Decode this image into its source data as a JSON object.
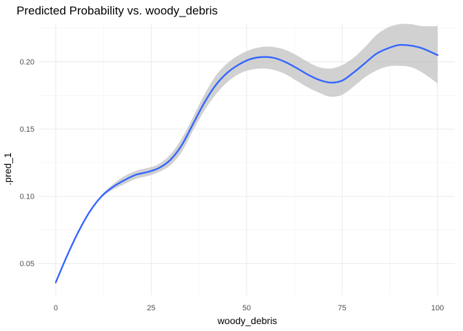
{
  "chart_data": {
    "type": "line",
    "title": "Predicted Probability vs. woody_debris",
    "xlabel": "woody_debris",
    "ylabel": ".pred_1",
    "xlim": [
      -4.5,
      104.5
    ],
    "ylim": [
      0.0265,
      0.2285
    ],
    "x_ticks": [
      0,
      25,
      50,
      75,
      100
    ],
    "x_tick_labels": [
      "0",
      "25",
      "50",
      "75",
      "100"
    ],
    "y_ticks": [
      0.05,
      0.1,
      0.15,
      0.2
    ],
    "y_tick_labels": [
      "0.05",
      "0.10",
      "0.15",
      "0.20"
    ],
    "grid": true,
    "legend": "none",
    "colors": {
      "line": "#3366ff",
      "band": "#bdbdbd"
    },
    "series": [
      {
        "x": [
          0,
          3,
          6,
          9,
          12,
          15,
          18,
          21,
          24,
          27,
          30,
          33,
          36,
          39,
          42,
          45,
          48,
          51,
          54,
          57,
          60,
          63,
          66,
          69,
          72,
          75,
          78,
          81,
          84,
          87,
          90,
          93,
          96,
          100
        ],
        "y": [
          0.036,
          0.056,
          0.074,
          0.089,
          0.1,
          0.107,
          0.112,
          0.116,
          0.118,
          0.121,
          0.127,
          0.138,
          0.154,
          0.17,
          0.183,
          0.192,
          0.198,
          0.202,
          0.2035,
          0.203,
          0.2,
          0.1955,
          0.1905,
          0.1865,
          0.1845,
          0.186,
          0.192,
          0.199,
          0.206,
          0.21,
          0.2125,
          0.212,
          0.21,
          0.205
        ],
        "lower": [
          0.0355,
          0.0555,
          0.0735,
          0.0885,
          0.099,
          0.105,
          0.109,
          0.113,
          0.115,
          0.118,
          0.123,
          0.133,
          0.149,
          0.164,
          0.176,
          0.185,
          0.191,
          0.194,
          0.195,
          0.194,
          0.191,
          0.186,
          0.181,
          0.177,
          0.174,
          0.1755,
          0.1815,
          0.1885,
          0.1935,
          0.1965,
          0.197,
          0.196,
          0.192,
          0.184
        ],
        "upper": [
          0.0365,
          0.0565,
          0.0745,
          0.0895,
          0.101,
          0.109,
          0.115,
          0.119,
          0.121,
          0.124,
          0.131,
          0.143,
          0.159,
          0.176,
          0.19,
          0.199,
          0.205,
          0.209,
          0.211,
          0.211,
          0.209,
          0.205,
          0.2,
          0.196,
          0.195,
          0.1975,
          0.203,
          0.211,
          0.22,
          0.2255,
          0.228,
          0.228,
          0.2265,
          0.2265
        ]
      }
    ]
  }
}
